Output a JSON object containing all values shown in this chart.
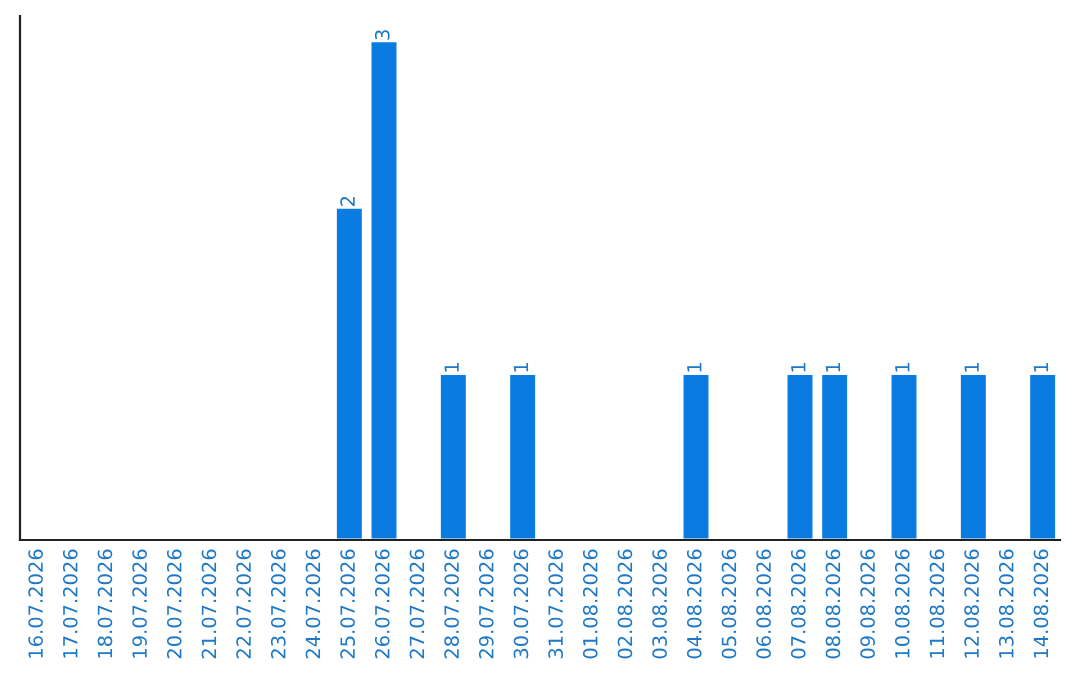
{
  "chart_data": {
    "type": "bar",
    "categories": [
      "16.07.2026",
      "17.07.2026",
      "18.07.2026",
      "19.07.2026",
      "20.07.2026",
      "21.07.2026",
      "22.07.2026",
      "23.07.2026",
      "24.07.2026",
      "25.07.2026",
      "26.07.2026",
      "27.07.2026",
      "28.07.2026",
      "29.07.2026",
      "30.07.2026",
      "31.07.2026",
      "01.08.2026",
      "02.08.2026",
      "03.08.2026",
      "04.08.2026",
      "05.08.2026",
      "06.08.2026",
      "07.08.2026",
      "08.08.2026",
      "09.08.2026",
      "10.08.2026",
      "11.08.2026",
      "12.08.2026",
      "13.08.2026",
      "14.08.2026"
    ],
    "values": [
      0,
      0,
      0,
      0,
      0,
      0,
      0,
      0,
      0,
      2,
      3,
      0,
      1,
      0,
      1,
      0,
      0,
      0,
      0,
      1,
      0,
      0,
      1,
      1,
      0,
      1,
      0,
      1,
      0,
      1
    ],
    "value_labels": [
      null,
      null,
      null,
      null,
      null,
      null,
      null,
      null,
      null,
      "2",
      "3",
      null,
      "1",
      null,
      "1",
      null,
      null,
      null,
      null,
      "1",
      null,
      null,
      "1",
      "1",
      null,
      "1",
      null,
      "1",
      null,
      "1"
    ],
    "color": "#0a7be0",
    "grid": false,
    "tick_labels": "x",
    "legend": false
  }
}
